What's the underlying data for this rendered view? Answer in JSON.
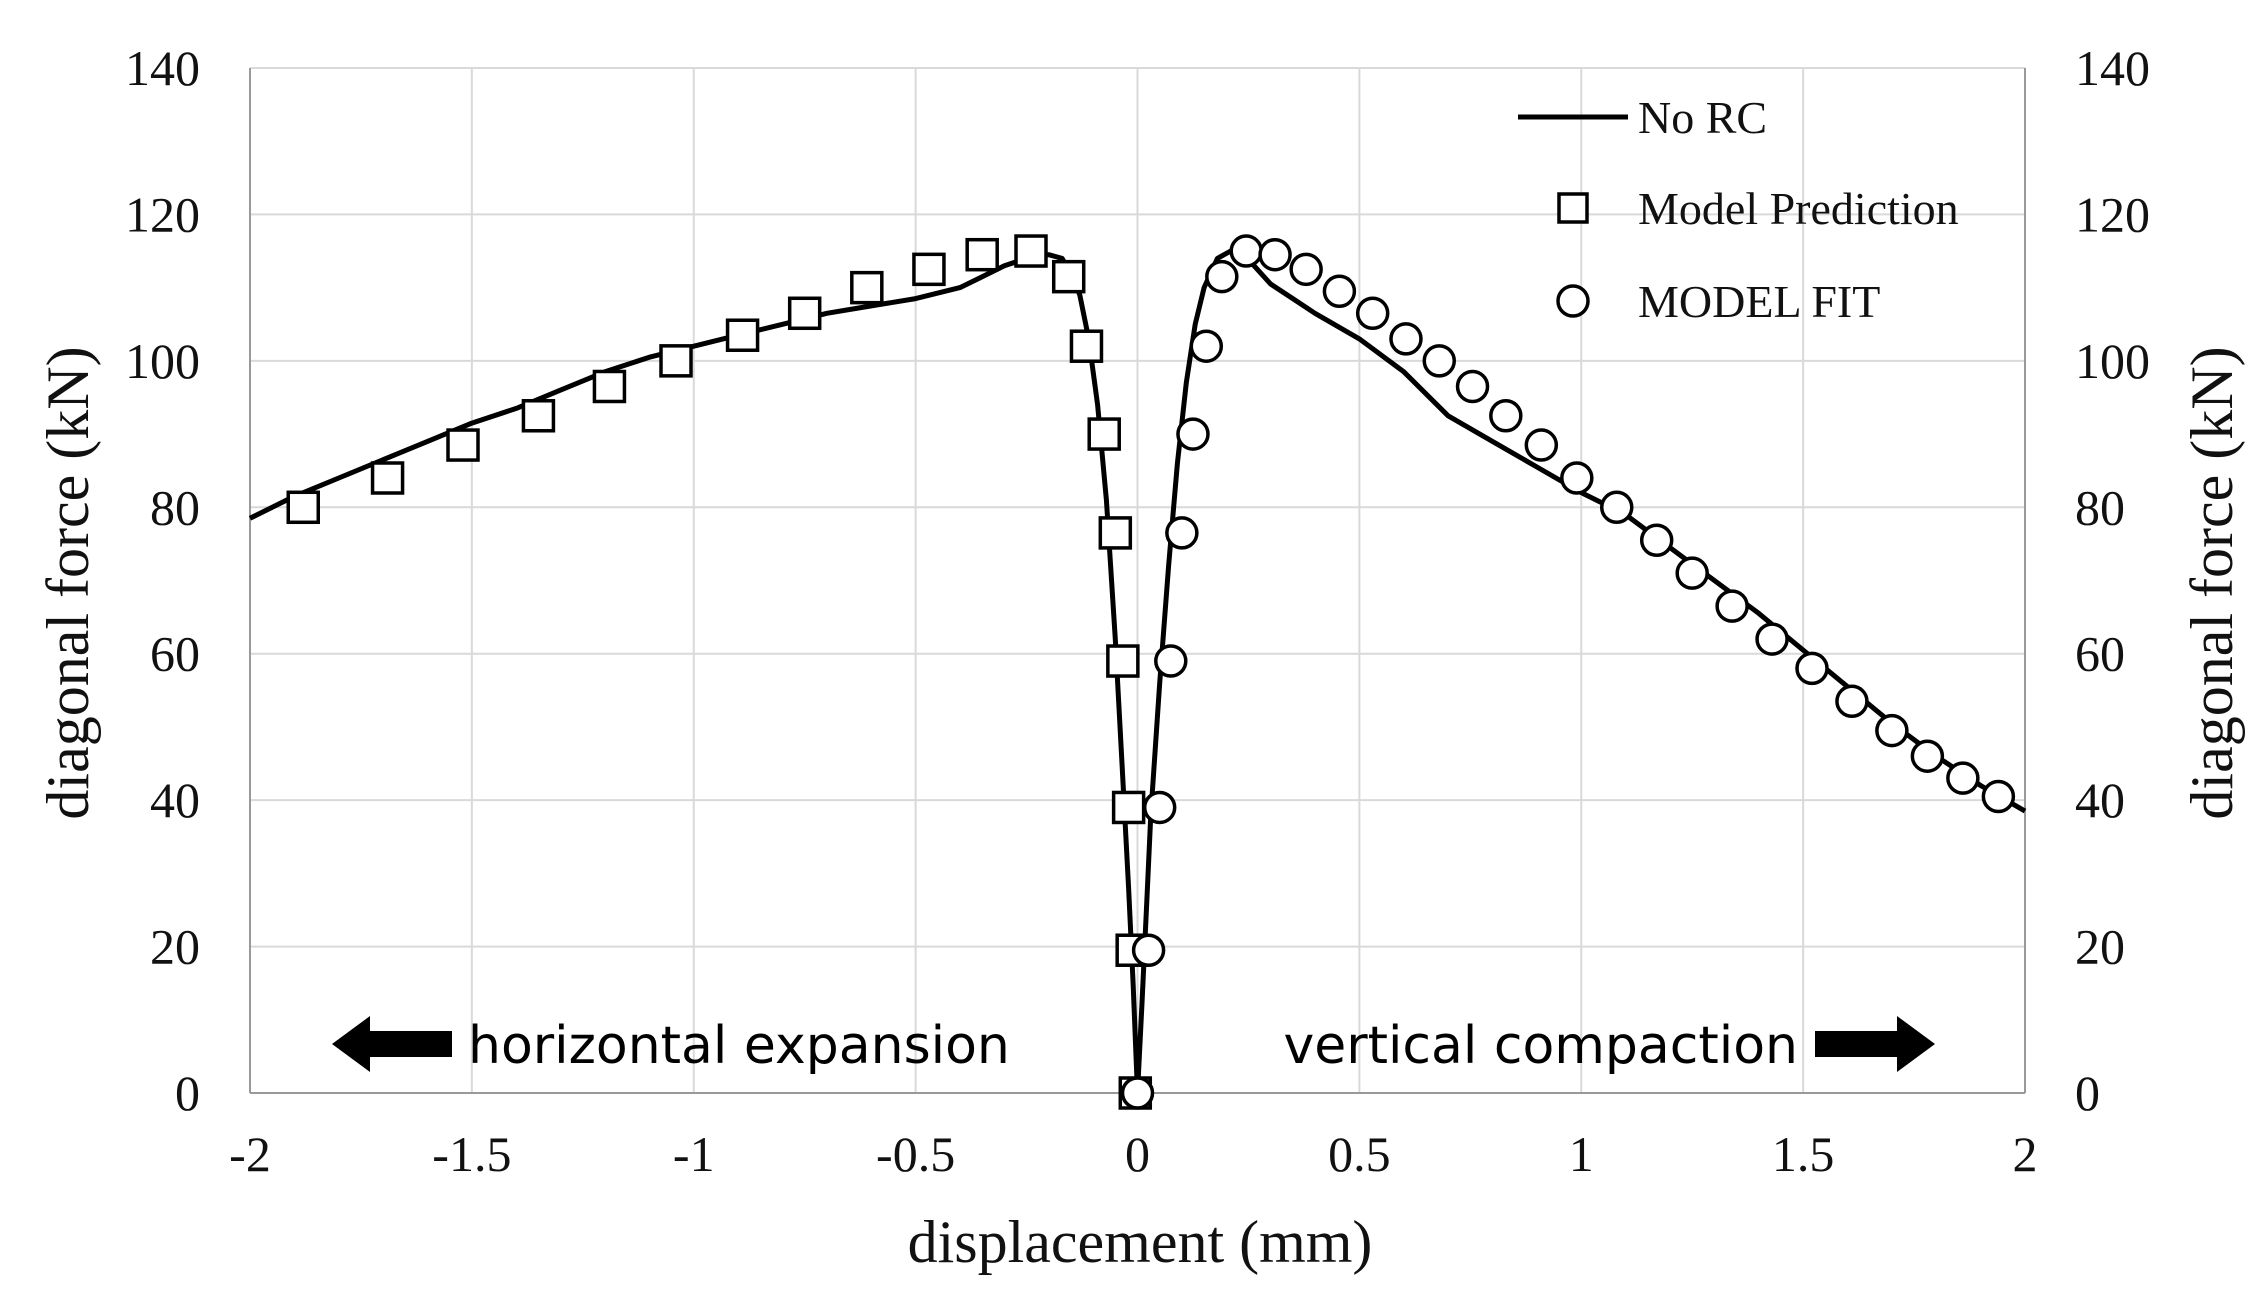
{
  "chart_data": {
    "type": "scatter",
    "title": "",
    "xlabel": "displacement (mm)",
    "ylabel": "diagonal force (kN)",
    "y2label": "diagonal force (kN)",
    "xlim": [
      -2,
      2
    ],
    "ylim": [
      0,
      140
    ],
    "xticks": [
      -2,
      -1.5,
      -1,
      -0.5,
      0,
      0.5,
      1,
      1.5,
      2
    ],
    "xtick_labels": [
      "-2",
      "-1.5",
      "-1",
      "-0.5",
      "0",
      "0.5",
      "1",
      "1.5",
      "2"
    ],
    "yticks": [
      0,
      20,
      40,
      60,
      80,
      100,
      120,
      140
    ],
    "ytick_labels": [
      "0",
      "20",
      "40",
      "60",
      "80",
      "100",
      "120",
      "140"
    ],
    "grid": true,
    "legend_position": "top-right",
    "annotations": {
      "left": "horizontal expansion",
      "right": "vertical compaction"
    },
    "series": [
      {
        "name": "No RC",
        "style": "line",
        "color": "#000000",
        "x": [
          -2.0,
          -1.9,
          -1.8,
          -1.7,
          -1.6,
          -1.5,
          -1.4,
          -1.3,
          -1.2,
          -1.1,
          -1.0,
          -0.9,
          -0.8,
          -0.7,
          -0.6,
          -0.5,
          -0.4,
          -0.35,
          -0.3,
          -0.25,
          -0.2,
          -0.17,
          -0.15,
          -0.13,
          -0.11,
          -0.09,
          -0.07,
          -0.05,
          -0.035,
          -0.02,
          -0.01,
          0.0,
          0.01,
          0.02,
          0.03,
          0.05,
          0.07,
          0.09,
          0.11,
          0.13,
          0.15,
          0.18,
          0.21,
          0.24,
          0.27,
          0.3,
          0.35,
          0.4,
          0.5,
          0.6,
          0.7,
          0.8,
          0.9,
          1.0,
          1.1,
          1.2,
          1.3,
          1.4,
          1.5,
          1.6,
          1.7,
          1.8,
          1.9,
          2.0
        ],
        "y": [
          78.5,
          81.5,
          84,
          86.5,
          89,
          91.5,
          93.5,
          96,
          98.5,
          100.5,
          102,
          103.5,
          105,
          106.5,
          107.5,
          108.5,
          110,
          111.5,
          113,
          114,
          114.5,
          114,
          112,
          109,
          103,
          94,
          81,
          62,
          45,
          28,
          15,
          0,
          12,
          25,
          38,
          56,
          72,
          86,
          97,
          105,
          110,
          114,
          115,
          114.5,
          112.5,
          110.5,
          108.5,
          106.5,
          103,
          98.5,
          92.5,
          89,
          85.5,
          82,
          79,
          74.5,
          70,
          65.5,
          60.5,
          55.5,
          50.5,
          46,
          42,
          38.5
        ]
      },
      {
        "name": "Model Prediction",
        "style": "square",
        "x": [
          -1.88,
          -1.69,
          -1.52,
          -1.35,
          -1.19,
          -1.04,
          -0.89,
          -0.75,
          -0.61,
          -0.47,
          -0.35,
          -0.24,
          -0.155,
          -0.115,
          -0.075,
          -0.05,
          -0.033,
          -0.02,
          -0.012,
          -0.005
        ],
        "y": [
          80,
          84,
          88.5,
          92.5,
          96.5,
          100,
          103.5,
          106.5,
          110,
          112.5,
          114.5,
          115,
          111.5,
          102,
          90,
          76.5,
          59,
          39,
          19.5,
          0
        ]
      },
      {
        "name": "MODEL FIT",
        "style": "circle",
        "x": [
          0.0,
          0.025,
          0.05,
          0.075,
          0.1,
          0.125,
          0.155,
          0.19,
          0.245,
          0.31,
          0.38,
          0.455,
          0.53,
          0.605,
          0.68,
          0.755,
          0.83,
          0.91,
          0.99,
          1.08,
          1.17,
          1.25,
          1.34,
          1.43,
          1.52,
          1.61,
          1.7,
          1.78,
          1.86,
          1.94
        ],
        "y": [
          0,
          19.5,
          39,
          59,
          76.5,
          90,
          102,
          111.5,
          115,
          114.5,
          112.5,
          109.5,
          106.5,
          103,
          100,
          96.5,
          92.5,
          88.5,
          84,
          80,
          75.5,
          71,
          66.5,
          62,
          58,
          53.5,
          49.5,
          46,
          43,
          40.5
        ]
      }
    ]
  }
}
